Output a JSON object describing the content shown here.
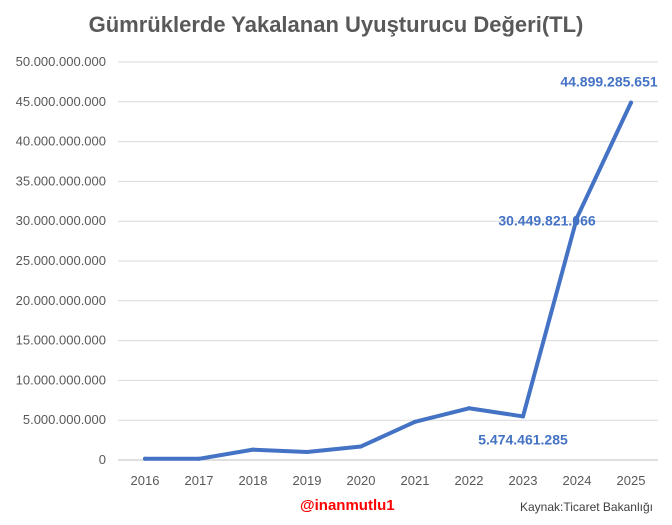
{
  "chart_data": {
    "type": "line",
    "title": "Gümrüklerde Yakalanan Uyuşturucu Değeri(TL)",
    "xlabel": "",
    "ylabel": "",
    "x": [
      2016,
      2017,
      2018,
      2019,
      2020,
      2021,
      2022,
      2023,
      2024,
      2025
    ],
    "series": [
      {
        "values": [
          150000000,
          150000000,
          1300000000,
          1000000000,
          1700000000,
          4800000000,
          6500000000,
          5474461285,
          30449821066,
          44899285651
        ]
      }
    ],
    "ylim": [
      0,
      50000000000
    ],
    "yticks": [
      "0",
      "5.000.000.000",
      "10.000.000.000",
      "15.000.000.000",
      "20.000.000.000",
      "25.000.000.000",
      "30.000.000.000",
      "35.000.000.000",
      "40.000.000.000",
      "45.000.000.000",
      "50.000.000.000"
    ],
    "data_labels": [
      {
        "index": 7,
        "text": "5.474.461.285"
      },
      {
        "index": 8,
        "text": "30.449.821.066"
      },
      {
        "index": 9,
        "text": "44.899.285.651"
      }
    ],
    "grid": true,
    "line_color": "#4472c4"
  },
  "watermark": "@inanmutlu1",
  "source": "Kaynak:Ticaret Bakanlığı"
}
